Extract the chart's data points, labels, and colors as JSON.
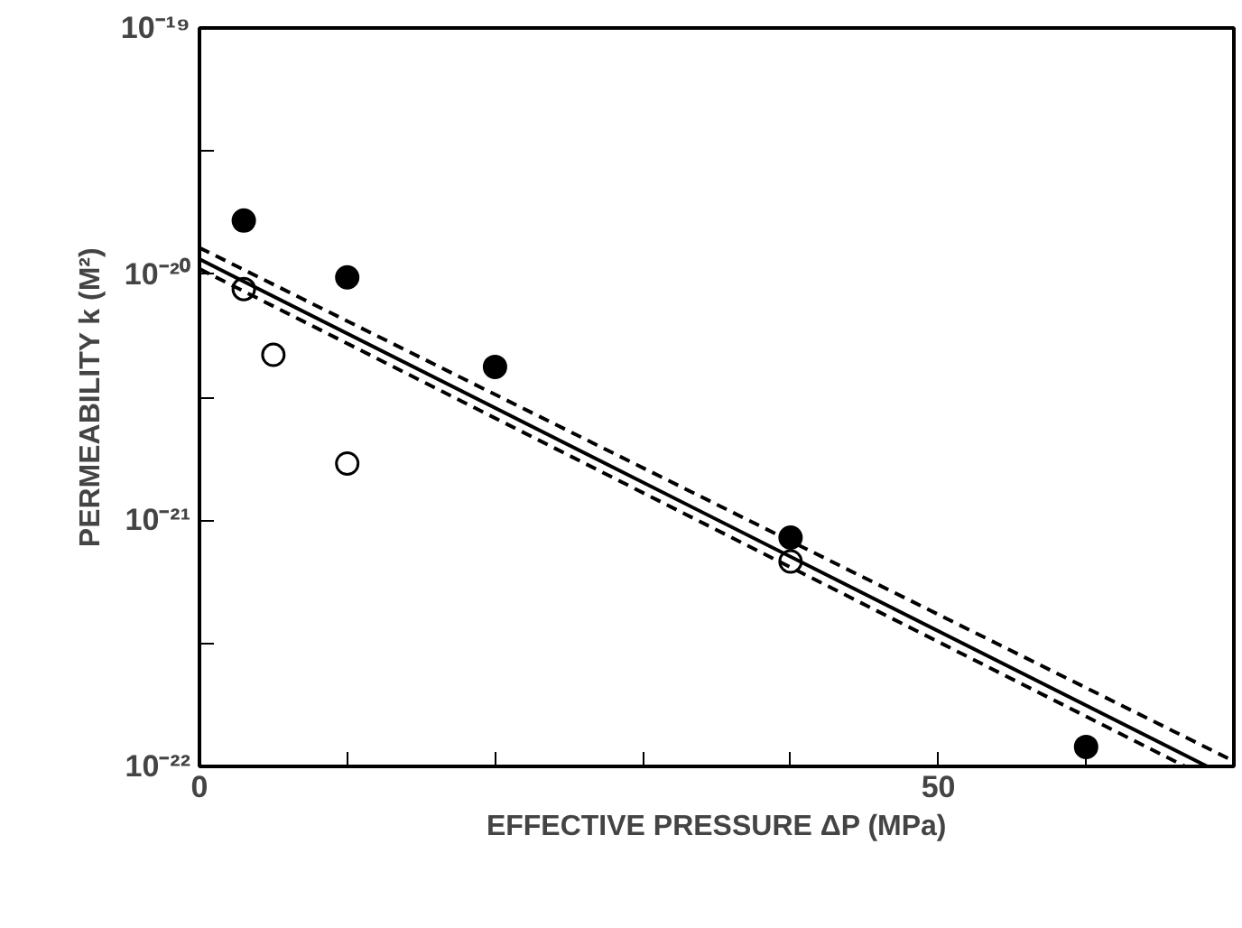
{
  "chart_data": {
    "type": "scatter",
    "xlabel": "EFFECTIVE PRESSURE ΔP (MPa)",
    "ylabel": "PERMEABILITY k (M²)",
    "log": "y",
    "grid": false,
    "marker": "circle",
    "xlim": [
      0,
      70
    ],
    "xticks": [
      0,
      {
        "value": 10,
        "label": null
      },
      {
        "value": 20,
        "label": null
      },
      {
        "value": 30,
        "label": null
      },
      {
        "value": 40,
        "label": null
      },
      50,
      {
        "value": 60,
        "label": null
      }
    ],
    "ylim": [
      1e-22,
      1e-19
    ],
    "yticks": [
      {
        "value": 1e-22,
        "label": "10⁻²²"
      },
      {
        "value": 3.16e-22,
        "label": null
      },
      {
        "value": 1e-21,
        "label": "10⁻²¹"
      },
      {
        "value": 3.16e-21,
        "label": null
      },
      {
        "value": 1e-20,
        "label": "10⁻²⁰"
      },
      {
        "value": 3.16e-20,
        "label": null
      },
      {
        "value": 1e-19,
        "label": "10⁻¹⁹"
      }
    ],
    "series": [
      {
        "color": "#000000",
        "x": [
          3,
          10,
          20,
          40,
          60
        ],
        "values": [
          1.65e-20,
          9.7e-21,
          4.2e-21,
          8.5e-22,
          1.2e-22
        ]
      },
      {
        "color": "#ffffff",
        "x": [
          3,
          5,
          10,
          40
        ],
        "values": [
          8.7e-21,
          4.7e-21,
          1.7e-21,
          6.8e-22
        ]
      },
      {
        "type": "line",
        "line_style": "solid",
        "marker": "none",
        "color": "#000000",
        "x": [
          0,
          68.2
        ],
        "values": [
          1.15e-20,
          1e-22
        ]
      },
      {
        "type": "line",
        "line_style": "dashed",
        "marker": "none",
        "color": "#000000",
        "x": [
          0,
          70
        ],
        "values": [
          1.28e-20,
          1.05e-22
        ]
      },
      {
        "type": "line",
        "line_style": "dashed",
        "marker": "none",
        "color": "#000000",
        "x": [
          0,
          66.7
        ],
        "values": [
          1.05e-20,
          1e-22
        ]
      }
    ]
  }
}
